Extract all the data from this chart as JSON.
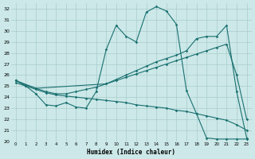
{
  "xlabel": "Humidex (Indice chaleur)",
  "bg_color": "#cce8e8",
  "line_color": "#1a7070",
  "grid_color": "#aacccc",
  "xlim": [
    -0.5,
    23.5
  ],
  "ylim": [
    20,
    32.5
  ],
  "xticks": [
    0,
    1,
    2,
    3,
    4,
    5,
    6,
    7,
    8,
    9,
    10,
    11,
    12,
    13,
    14,
    15,
    16,
    17,
    18,
    19,
    20,
    21,
    22,
    23
  ],
  "yticks": [
    20,
    21,
    22,
    23,
    24,
    25,
    26,
    27,
    28,
    29,
    30,
    31,
    32
  ],
  "series1_x": [
    0,
    1,
    2,
    3,
    4,
    5,
    6,
    7,
    8,
    9,
    10,
    11,
    12,
    13,
    14,
    15,
    16,
    17,
    18,
    19,
    20,
    21,
    22,
    23
  ],
  "series1_y": [
    25.5,
    25.0,
    24.3,
    23.3,
    23.2,
    23.5,
    23.1,
    23.0,
    24.5,
    28.3,
    30.5,
    29.5,
    29.0,
    31.7,
    32.2,
    31.8,
    30.6,
    24.6,
    22.5,
    20.3,
    20.2,
    20.2,
    20.2,
    20.2
  ],
  "series2_x": [
    0,
    2,
    9,
    10,
    11,
    12,
    13,
    14,
    15,
    16,
    17,
    18,
    19,
    20,
    21,
    22,
    23
  ],
  "series2_y": [
    25.5,
    24.8,
    25.2,
    25.6,
    26.0,
    26.4,
    26.8,
    27.2,
    27.5,
    27.8,
    28.2,
    29.3,
    29.5,
    29.5,
    30.5,
    24.5,
    20.3
  ],
  "series3_x": [
    0,
    1,
    2,
    3,
    4,
    5,
    6,
    7,
    8,
    9,
    10,
    11,
    12,
    13,
    14,
    15,
    16,
    17,
    18,
    19,
    20,
    21,
    22,
    23
  ],
  "series3_y": [
    25.5,
    25.1,
    24.8,
    24.5,
    24.3,
    24.3,
    24.5,
    24.7,
    24.9,
    25.2,
    25.5,
    25.8,
    26.1,
    26.4,
    26.7,
    27.0,
    27.3,
    27.6,
    27.9,
    28.2,
    28.5,
    28.8,
    26.0,
    22.0
  ],
  "series4_x": [
    0,
    1,
    2,
    3,
    4,
    5,
    6,
    7,
    8,
    9,
    10,
    11,
    12,
    13,
    14,
    15,
    16,
    17,
    18,
    19,
    20,
    21,
    22,
    23
  ],
  "series4_y": [
    25.3,
    25.0,
    24.7,
    24.4,
    24.2,
    24.1,
    24.0,
    23.9,
    23.8,
    23.7,
    23.6,
    23.5,
    23.3,
    23.2,
    23.1,
    23.0,
    22.8,
    22.7,
    22.5,
    22.3,
    22.1,
    21.9,
    21.5,
    21.0
  ]
}
